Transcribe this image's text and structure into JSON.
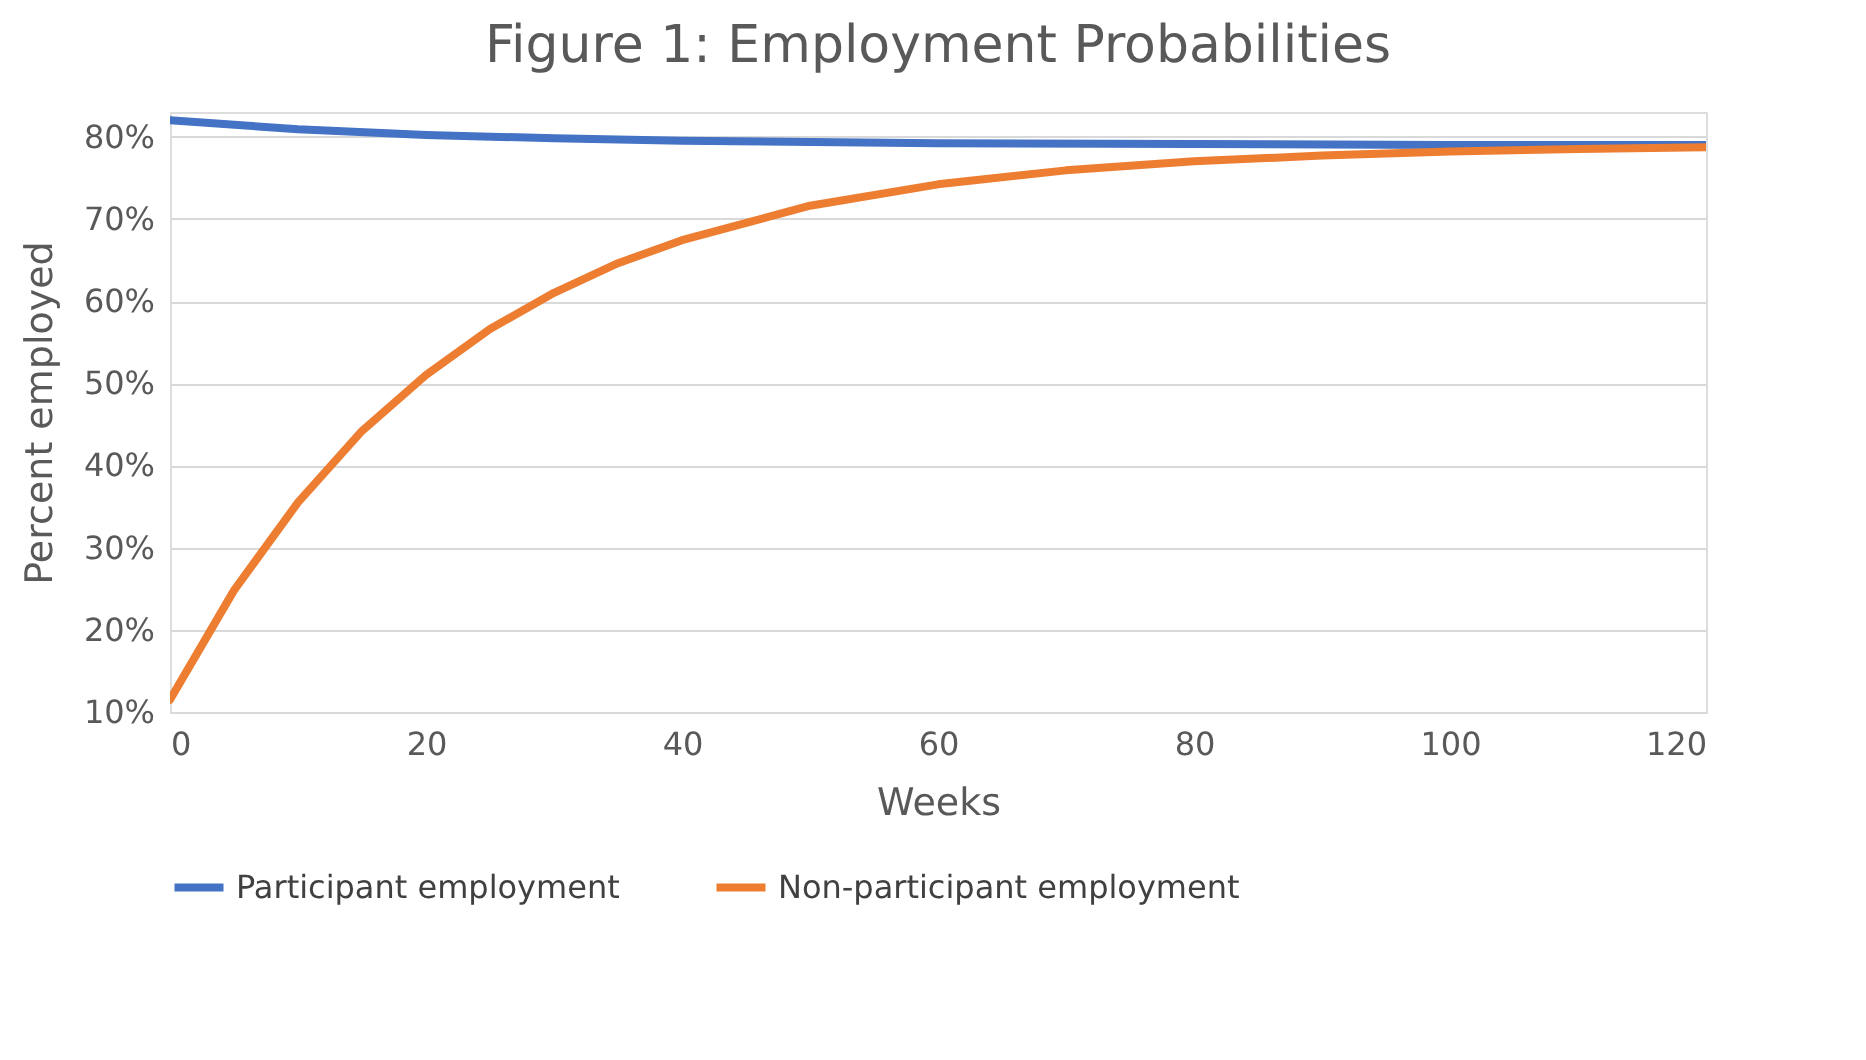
{
  "chart_data": {
    "type": "line",
    "title": "Figure 1: Employment Probabilities",
    "xlabel": "Weeks",
    "ylabel": "Percent employed",
    "xlim": [
      0,
      120
    ],
    "xticks": [
      0,
      20,
      40,
      60,
      80,
      100,
      120
    ],
    "ylim": [
      10,
      83
    ],
    "yticks": [
      {
        "value": 10,
        "label": "10%"
      },
      {
        "value": 20,
        "label": "20%"
      },
      {
        "value": 30,
        "label": "30%"
      },
      {
        "value": 40,
        "label": "40%"
      },
      {
        "value": 50,
        "label": "50%"
      },
      {
        "value": 60,
        "label": "60%"
      },
      {
        "value": 70,
        "label": "70%"
      },
      {
        "value": 80,
        "label": "80%"
      }
    ],
    "grid": "y",
    "legend": "bottom",
    "marker": "none",
    "line_style": "solid",
    "series": [
      {
        "name": "Participant employment",
        "color": "#4472c4",
        "x": [
          0,
          10,
          20,
          30,
          40,
          60,
          80,
          100,
          120
        ],
        "values": [
          82,
          80.9,
          80.2,
          79.8,
          79.5,
          79.2,
          79.1,
          79.0,
          79.0
        ]
      },
      {
        "name": "Non-participant employment",
        "color": "#ed7d31",
        "x": [
          0,
          5,
          10,
          15,
          20,
          25,
          30,
          35,
          40,
          50,
          60,
          70,
          80,
          90,
          100,
          110,
          120
        ],
        "values": [
          11.5,
          24.8,
          35.5,
          44.2,
          51.0,
          56.6,
          61.0,
          64.6,
          67.4,
          71.6,
          74.2,
          75.9,
          77.0,
          77.7,
          78.2,
          78.5,
          78.7
        ]
      }
    ]
  }
}
